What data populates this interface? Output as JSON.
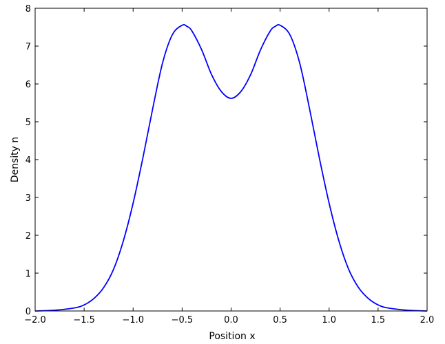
{
  "chart_data": {
    "type": "line",
    "title": "",
    "xlabel": "Position x",
    "ylabel": "Density n",
    "xlim": [
      -2.0,
      2.0
    ],
    "ylim": [
      0,
      8
    ],
    "grid": false,
    "x_ticks": [
      -2.0,
      -1.5,
      -1.0,
      -0.5,
      0.0,
      0.5,
      1.0,
      1.5,
      2.0
    ],
    "x_tick_labels": [
      "−2.0",
      "−1.5",
      "−1.0",
      "−0.5",
      "0.0",
      "0.5",
      "1.0",
      "1.5",
      "2.0"
    ],
    "y_ticks": [
      0,
      1,
      2,
      3,
      4,
      5,
      6,
      7,
      8
    ],
    "y_tick_labels": [
      "0",
      "1",
      "2",
      "3",
      "4",
      "5",
      "6",
      "7",
      "8"
    ],
    "line_color": "#0000ff",
    "series": [
      {
        "x": [
          -2.0,
          -1.8,
          -1.6,
          -1.5,
          -1.4,
          -1.3,
          -1.2,
          -1.1,
          -1.0,
          -0.9,
          -0.8,
          -0.7,
          -0.6,
          -0.5,
          -0.45,
          -0.4,
          -0.3,
          -0.2,
          -0.1,
          0.0,
          0.1,
          0.2,
          0.3,
          0.4,
          0.45,
          0.5,
          0.6,
          0.7,
          0.8,
          0.9,
          1.0,
          1.1,
          1.2,
          1.3,
          1.4,
          1.5,
          1.6,
          1.8,
          2.0
        ],
        "y": [
          0.0,
          0.02,
          0.08,
          0.16,
          0.33,
          0.62,
          1.1,
          1.85,
          2.85,
          4.05,
          5.35,
          6.55,
          7.3,
          7.55,
          7.52,
          7.4,
          6.9,
          6.25,
          5.8,
          5.62,
          5.8,
          6.25,
          6.9,
          7.4,
          7.52,
          7.55,
          7.3,
          6.55,
          5.35,
          4.05,
          2.85,
          1.85,
          1.1,
          0.62,
          0.33,
          0.16,
          0.08,
          0.02,
          0.0
        ]
      }
    ]
  }
}
